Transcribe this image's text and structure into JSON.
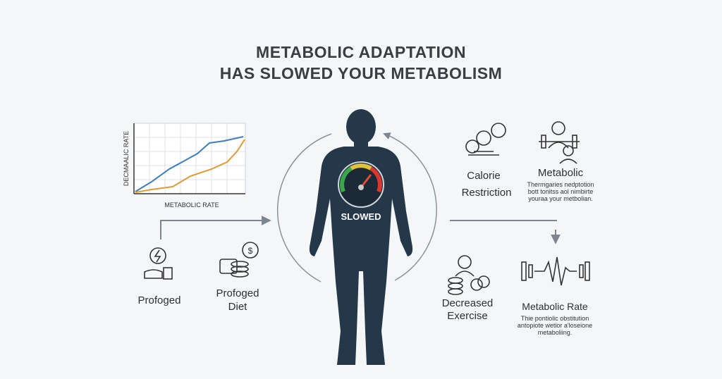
{
  "title": {
    "lines": [
      "METABOLIC ADAPTATION",
      "HAS SLOWED YOUR METABOLISM"
    ]
  },
  "chart": {
    "y_label": "DECMAALIC RATE",
    "x_label": "METABOLIC RATE"
  },
  "center": {
    "gauge_label": "SLOWED"
  },
  "nodes": [
    {
      "label": [
        "Profoged"
      ]
    },
    {
      "label": [
        "Profoged",
        "Diet"
      ]
    },
    {
      "label": [
        "Calorie",
        "Restriction"
      ]
    },
    {
      "label": [
        "Metabolic"
      ],
      "description": [
        "Thermgaries nedptotion",
        "bott tonitss aol nimbirte",
        "youraa your metbolian."
      ]
    },
    {
      "label": [
        "Decreased",
        "Exercise"
      ]
    },
    {
      "label": [
        "Metabolic Rate"
      ],
      "description": [
        "Thie pontiolic obstitution",
        "antopiote wetior a'loseione",
        "metaboliing."
      ]
    }
  ]
}
